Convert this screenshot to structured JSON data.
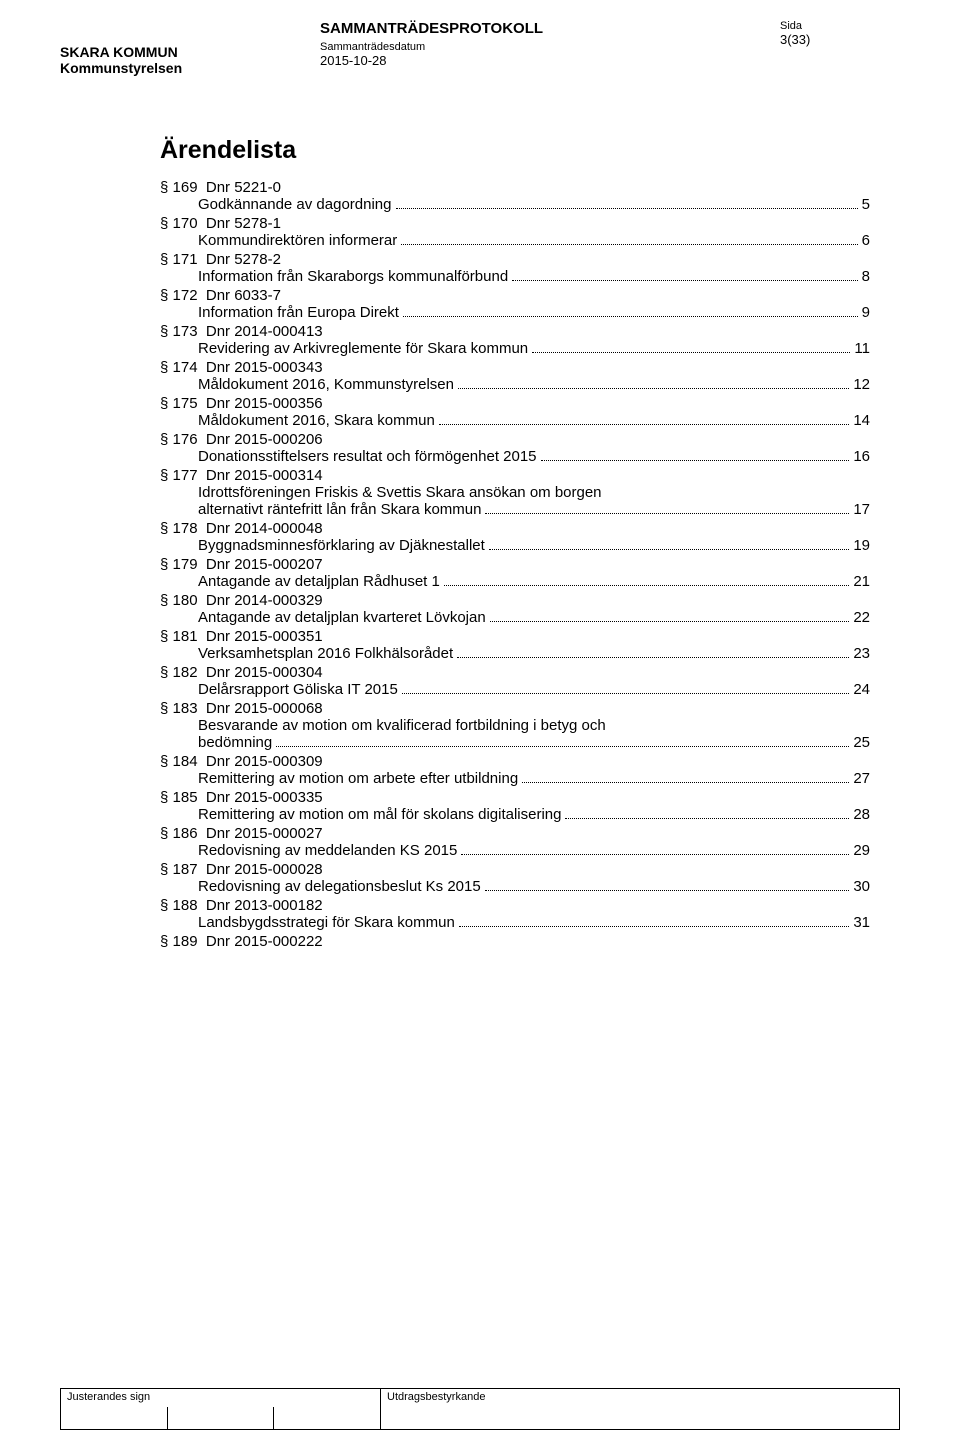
{
  "header": {
    "org_line1": "SKARA KOMMUN",
    "org_line2": "Kommunstyrelsen",
    "doc_type": "SAMMANTRÄDESPROTOKOLL",
    "date_label": "Sammanträdesdatum",
    "date_value": "2015-10-28",
    "sida_label": "Sida",
    "sida_value": "3(33)"
  },
  "toc_title": "Ärendelista",
  "items": [
    {
      "sec": "§ 169",
      "dnr": "Dnr 5221-0",
      "subject": "Godkännande av dagordning",
      "page": "5"
    },
    {
      "sec": "§ 170",
      "dnr": "Dnr 5278-1",
      "subject": "Kommundirektören informerar",
      "page": "6"
    },
    {
      "sec": "§ 171",
      "dnr": "Dnr 5278-2",
      "subject": "Information från Skaraborgs kommunalförbund",
      "page": "8"
    },
    {
      "sec": "§ 172",
      "dnr": "Dnr 6033-7",
      "subject": "Information från Europa Direkt",
      "page": "9"
    },
    {
      "sec": "§ 173",
      "dnr": "Dnr 2014-000413",
      "subject": "Revidering av Arkivreglemente för Skara kommun",
      "page": "11"
    },
    {
      "sec": "§ 174",
      "dnr": "Dnr 2015-000343",
      "subject": "Måldokument 2016, Kommunstyrelsen",
      "page": "12"
    },
    {
      "sec": "§ 175",
      "dnr": "Dnr 2015-000356",
      "subject": "Måldokument 2016, Skara kommun",
      "page": "14"
    },
    {
      "sec": "§ 176",
      "dnr": "Dnr 2015-000206",
      "subject": "Donationsstiftelsers resultat och förmögenhet 2015",
      "page": "16"
    },
    {
      "sec": "§ 177",
      "dnr": "Dnr 2015-000314",
      "subject": "Idrottsföreningen Friskis & Svettis Skara ansökan om borgen",
      "subject2": "alternativt räntefritt lån från Skara kommun",
      "page": "17"
    },
    {
      "sec": "§ 178",
      "dnr": "Dnr 2014-000048",
      "subject": "Byggnadsminnesförklaring av Djäknestallet",
      "page": "19"
    },
    {
      "sec": "§ 179",
      "dnr": "Dnr 2015-000207",
      "subject": "Antagande av detaljplan Rådhuset 1",
      "page": "21"
    },
    {
      "sec": "§ 180",
      "dnr": "Dnr 2014-000329",
      "subject": "Antagande av detaljplan kvarteret Lövkojan",
      "page": "22"
    },
    {
      "sec": "§ 181",
      "dnr": "Dnr 2015-000351",
      "subject": "Verksamhetsplan 2016 Folkhälsorådet",
      "page": "23"
    },
    {
      "sec": "§ 182",
      "dnr": "Dnr 2015-000304",
      "subject": "Delårsrapport Göliska IT 2015",
      "page": "24"
    },
    {
      "sec": "§ 183",
      "dnr": "Dnr 2015-000068",
      "subject": "Besvarande av motion om kvalificerad fortbildning i betyg och",
      "subject2": "bedömning",
      "page": "25"
    },
    {
      "sec": "§ 184",
      "dnr": "Dnr 2015-000309",
      "subject": "Remittering av motion om arbete efter utbildning",
      "page": "27"
    },
    {
      "sec": "§ 185",
      "dnr": "Dnr 2015-000335",
      "subject": "Remittering av motion om mål för skolans digitalisering",
      "page": "28"
    },
    {
      "sec": "§ 186",
      "dnr": "Dnr 2015-000027",
      "subject": "Redovisning av meddelanden KS 2015",
      "page": "29"
    },
    {
      "sec": "§ 187",
      "dnr": "Dnr 2015-000028",
      "subject": "Redovisning av delegationsbeslut Ks 2015",
      "page": "30"
    },
    {
      "sec": "§ 188",
      "dnr": "Dnr 2013-000182",
      "subject": "Landsbygdsstrategi för Skara kommun",
      "page": "31"
    },
    {
      "sec": "§ 189",
      "dnr": "Dnr 2015-000222",
      "subject": null,
      "page": null
    }
  ],
  "footer": {
    "left": "Justerandes sign",
    "right": "Utdragsbestyrkande"
  },
  "style": {
    "background_color": "#ffffff",
    "text_color": "#000000",
    "dot_color": "#000000",
    "font_family": "Arial",
    "body_fontsize_pt": 11,
    "title_fontsize_pt": 19,
    "header_bold_fontsize_pt": 11,
    "small_label_fontsize_pt": 8
  }
}
